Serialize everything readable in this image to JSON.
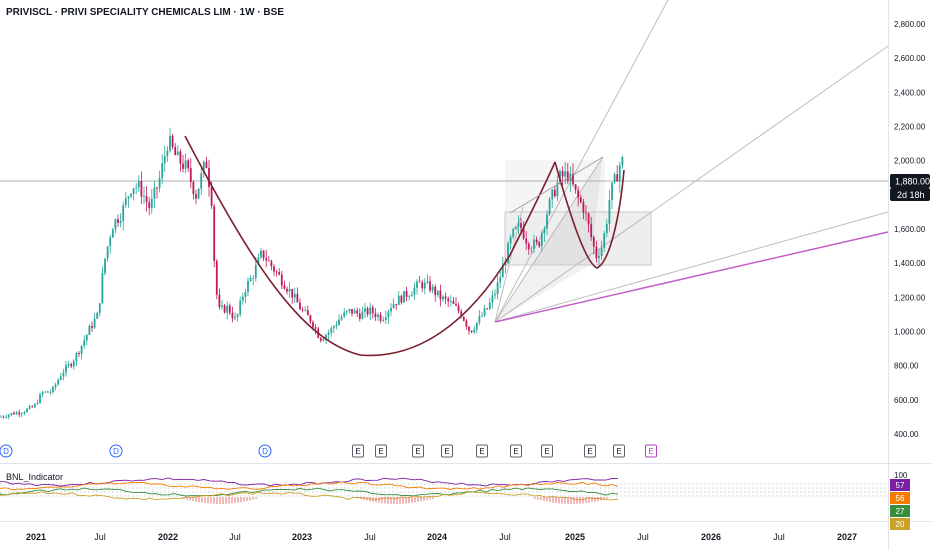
{
  "header": {
    "symbol_title": "PRIVISCL · PRIVI SPECIALITY CHEMICALS LIM · 1W · BSE"
  },
  "price_axis": {
    "labels": [
      "2,800.00",
      "2,600.00",
      "2,400.00",
      "2,200.00",
      "2,000.00",
      "1,800.00",
      "1,600.00",
      "1,400.00",
      "1,200.00",
      "1,000.00",
      "800.00",
      "600.00",
      "400.00"
    ],
    "values": [
      2800,
      2600,
      2400,
      2200,
      2000,
      1800,
      1600,
      1400,
      1200,
      1000,
      800,
      600,
      400
    ],
    "current_price": "1,880.00",
    "countdown": "2d 18h",
    "current_value": 1880
  },
  "time_axis": {
    "labels": [
      "2021",
      "Jul",
      "2022",
      "Jul",
      "2023",
      "Jul",
      "2024",
      "Jul",
      "2025",
      "Jul",
      "2026",
      "Jul",
      "2027"
    ],
    "bold": [
      true,
      false,
      true,
      false,
      true,
      false,
      true,
      false,
      true,
      false,
      true,
      false,
      true
    ]
  },
  "event_markers": [
    {
      "label": "D",
      "kind": "dividend"
    },
    {
      "label": "D",
      "kind": "dividend"
    },
    {
      "label": "D",
      "kind": "dividend"
    },
    {
      "label": "E",
      "kind": "earnings"
    },
    {
      "label": "E",
      "kind": "earnings"
    },
    {
      "label": "E",
      "kind": "earnings"
    },
    {
      "label": "E",
      "kind": "earnings"
    },
    {
      "label": "E",
      "kind": "earnings"
    },
    {
      "label": "E",
      "kind": "earnings"
    },
    {
      "label": "E",
      "kind": "earnings"
    },
    {
      "label": "E",
      "kind": "earnings"
    },
    {
      "label": "E",
      "kind": "earnings"
    },
    {
      "label": "E",
      "kind": "earnings-upcoming"
    }
  ],
  "indicator": {
    "name": "BNL_Indicator",
    "scale_label": "100",
    "badges": [
      {
        "value": "57",
        "color": "#7b1fa2"
      },
      {
        "value": "56",
        "color": "#f57c00"
      },
      {
        "value": "27",
        "color": "#388e3c"
      },
      {
        "value": "20",
        "color": "#c9a227"
      }
    ]
  },
  "colors": {
    "up": "#26a69a",
    "down": "#c2185b",
    "cup_curve": "#7b1f2e",
    "trendline": "#c55ec9",
    "fan": "#bdbdbd"
  }
}
